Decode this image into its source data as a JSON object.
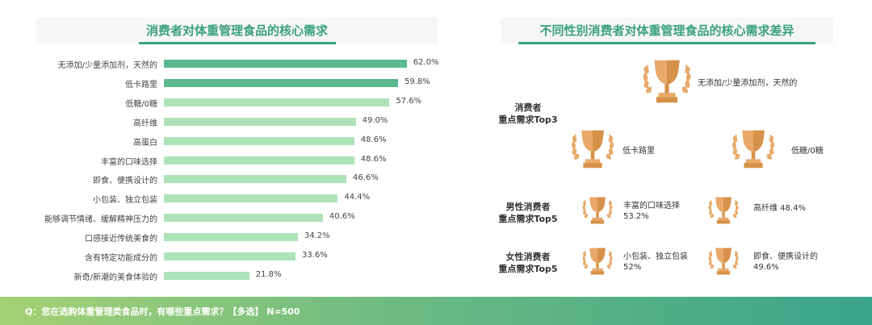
{
  "left_title": "消费者对体重管理食品的核心需求",
  "right_title": "不同性别消费者对体重管理食品的核心需求差异",
  "chart_data": {
    "type": "bar",
    "orientation": "horizontal",
    "title": "消费者对体重管理食品的核心需求",
    "categories": [
      "无添加/少量添加剂，天然的",
      "低卡路里",
      "低糖/0糖",
      "高纤维",
      "高蛋白",
      "丰富的口味选择",
      "即食、便携设计的",
      "小包装、独立包装",
      "能够调节情绪、缓解精神压力的",
      "口感接近传统美食的",
      "含有特定功能成分的",
      "新奇/新潮的美食体验的"
    ],
    "values": [
      62.0,
      59.8,
      57.6,
      49.0,
      48.6,
      48.6,
      46.6,
      44.4,
      40.6,
      34.2,
      33.6,
      21.8
    ],
    "value_labels": [
      "62.0%",
      "59.8%",
      "57.6%",
      "49.0%",
      "48.6%",
      "48.6%",
      "46.6%",
      "44.4%",
      "40.6%",
      "34.2%",
      "33.6%",
      "21.8%"
    ],
    "highlight_count": 2,
    "colors": {
      "highlight": "#5cb88f",
      "normal": "#aee2b9"
    }
  },
  "sections": {
    "top3_label": "消费者\n重点需求Top3",
    "male_label": "男性消费者\n重点需求Top5",
    "female_label": "女性消费者\n重点需求Top5"
  },
  "trophies": {
    "top3_1": "无添加/少量添加剂，天然的",
    "top3_2": "低卡路里",
    "top3_3": "低糖/0糖",
    "male_1": "丰富的口味选择\n53.2%",
    "male_2": "高纤维 48.4%",
    "female_1": "小包装、独立包装\n52%",
    "female_2": "即食、便携设计的\n49.6%"
  },
  "footer": "Q：您在选购体重管理类食品时，有哪些重点需求？【多选】 N=500",
  "colors": {
    "accent": "#3aa17e",
    "trophy": "#e8a96a",
    "trophy_dark": "#d79249",
    "laurel": "#e8a96a"
  }
}
